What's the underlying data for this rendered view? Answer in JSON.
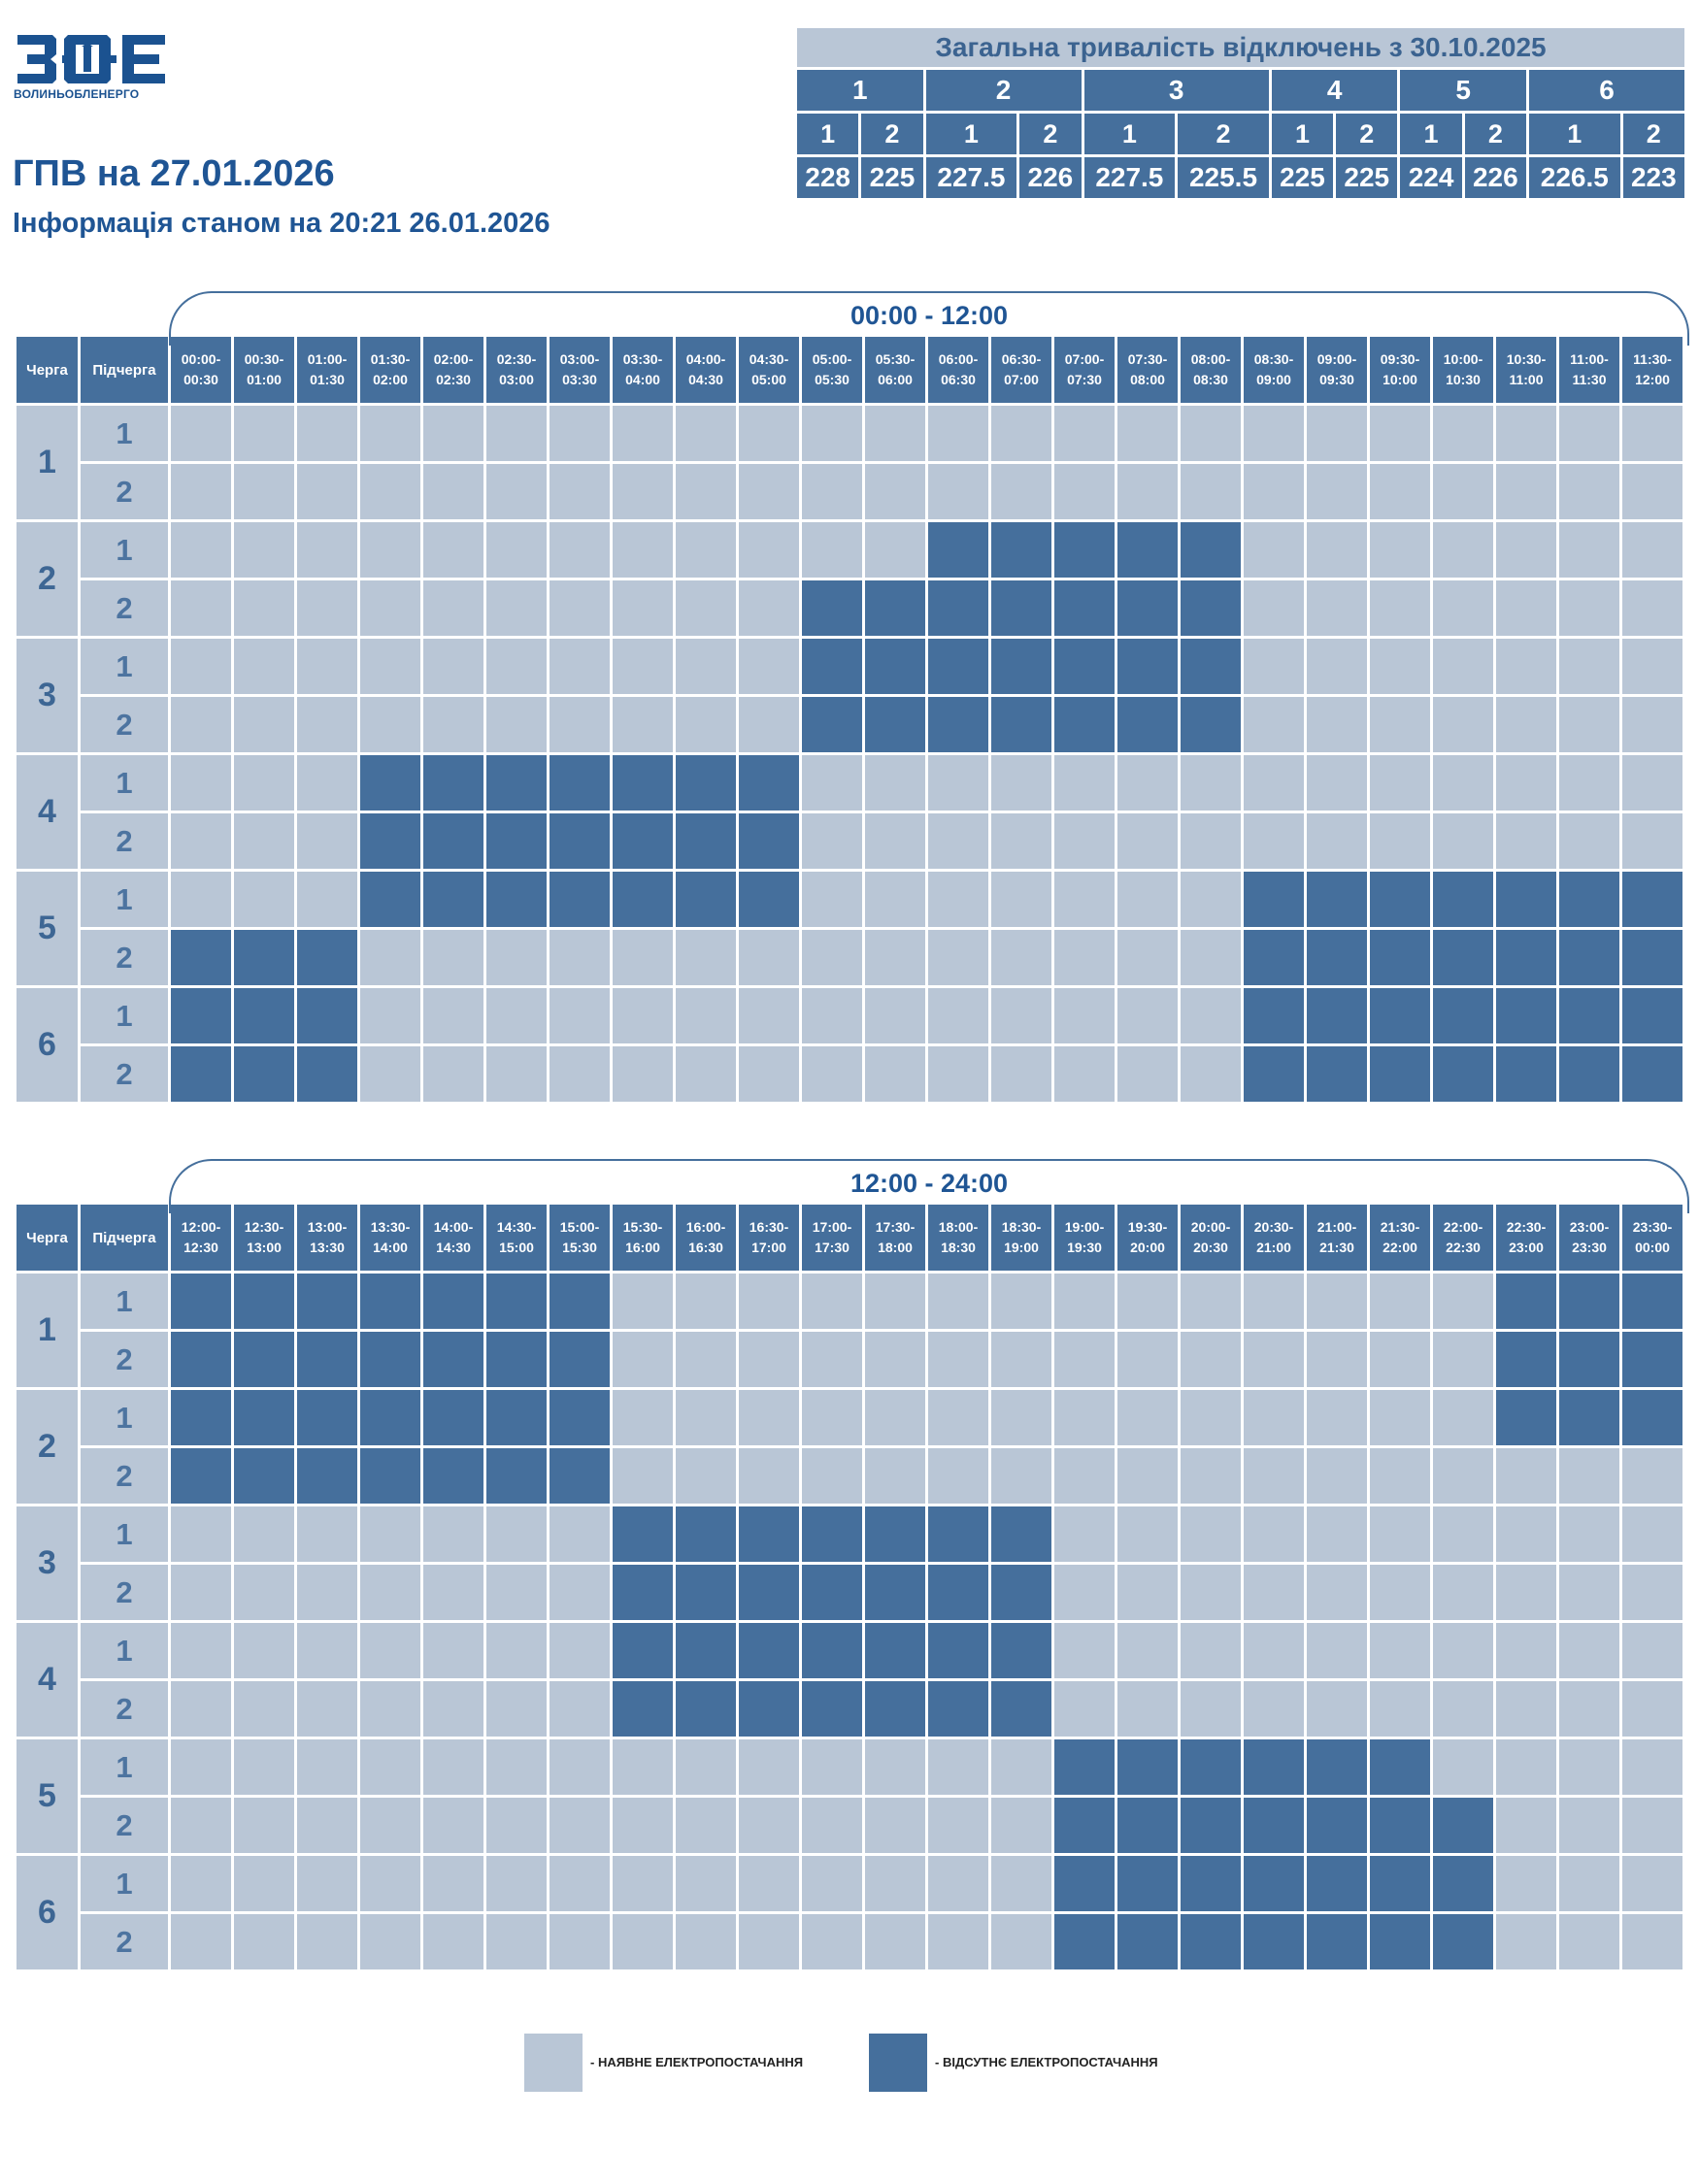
{
  "logo": {
    "text": "ВОЛИНЬОБЛЕНЕРГО"
  },
  "header": {
    "title": "ГПВ на 27.01.2026",
    "subtitle": "Інформація станом на 20:21 26.01.2026"
  },
  "summary": {
    "title": "Загальна тривалість відключень з 30.10.2025",
    "groups": [
      "1",
      "2",
      "3",
      "4",
      "5",
      "6"
    ],
    "subgroups": [
      "1",
      "2",
      "1",
      "2",
      "1",
      "2",
      "1",
      "2",
      "1",
      "2",
      "1",
      "2"
    ],
    "values": [
      "228",
      "225",
      "227.5",
      "226",
      "227.5",
      "225.5",
      "225",
      "225",
      "224",
      "226",
      "226.5",
      "223"
    ]
  },
  "colors": {
    "power_on": "#b9c6d6",
    "power_off": "#456f9c",
    "accent": "#1f5594"
  },
  "grid_headers": {
    "queue": "Черга",
    "subqueue": "Підчерга"
  },
  "halves": [
    {
      "range": "00:00 - 12:00",
      "slots": [
        "00:00-00:30",
        "00:30-01:00",
        "01:00-01:30",
        "01:30-02:00",
        "02:00-02:30",
        "02:30-03:00",
        "03:00-03:30",
        "03:30-04:00",
        "04:00-04:30",
        "04:30-05:00",
        "05:00-05:30",
        "05:30-06:00",
        "06:00-06:30",
        "06:30-07:00",
        "07:00-07:30",
        "07:30-08:00",
        "08:00-08:30",
        "08:30-09:00",
        "09:00-09:30",
        "09:30-10:00",
        "10:00-10:30",
        "10:30-11:00",
        "11:00-11:30",
        "11:30-12:00"
      ],
      "rows": [
        {
          "queue": "1",
          "sub": "1",
          "cells": "000000000000000000000000"
        },
        {
          "queue": "1",
          "sub": "2",
          "cells": "000000000000000000000000"
        },
        {
          "queue": "2",
          "sub": "1",
          "cells": "000000000000111110000000"
        },
        {
          "queue": "2",
          "sub": "2",
          "cells": "000000000011111110000000"
        },
        {
          "queue": "3",
          "sub": "1",
          "cells": "000000000011111110000000"
        },
        {
          "queue": "3",
          "sub": "2",
          "cells": "000000000011111110000000"
        },
        {
          "queue": "4",
          "sub": "1",
          "cells": "000111111100000000000000"
        },
        {
          "queue": "4",
          "sub": "2",
          "cells": "000111111100000000000000"
        },
        {
          "queue": "5",
          "sub": "1",
          "cells": "000111111100000001111111"
        },
        {
          "queue": "5",
          "sub": "2",
          "cells": "111000000000000001111111"
        },
        {
          "queue": "6",
          "sub": "1",
          "cells": "111000000000000001111111"
        },
        {
          "queue": "6",
          "sub": "2",
          "cells": "111000000000000001111111"
        }
      ]
    },
    {
      "range": "12:00 - 24:00",
      "slots": [
        "12:00-12:30",
        "12:30-13:00",
        "13:00-13:30",
        "13:30-14:00",
        "14:00-14:30",
        "14:30-15:00",
        "15:00-15:30",
        "15:30-16:00",
        "16:00-16:30",
        "16:30-17:00",
        "17:00-17:30",
        "17:30-18:00",
        "18:00-18:30",
        "18:30-19:00",
        "19:00-19:30",
        "19:30-20:00",
        "20:00-20:30",
        "20:30-21:00",
        "21:00-21:30",
        "21:30-22:00",
        "22:00-22:30",
        "22:30-23:00",
        "23:00-23:30",
        "23:30-00:00"
      ],
      "rows": [
        {
          "queue": "1",
          "sub": "1",
          "cells": "111111100000000000000111"
        },
        {
          "queue": "1",
          "sub": "2",
          "cells": "111111100000000000000111"
        },
        {
          "queue": "2",
          "sub": "1",
          "cells": "111111100000000000000111"
        },
        {
          "queue": "2",
          "sub": "2",
          "cells": "111111100000000000000000"
        },
        {
          "queue": "3",
          "sub": "1",
          "cells": "000000011111110000000000"
        },
        {
          "queue": "3",
          "sub": "2",
          "cells": "000000011111110000000000"
        },
        {
          "queue": "4",
          "sub": "1",
          "cells": "000000011111110000000000"
        },
        {
          "queue": "4",
          "sub": "2",
          "cells": "000000011111110000000000"
        },
        {
          "queue": "5",
          "sub": "1",
          "cells": "000000000000001111110000"
        },
        {
          "queue": "5",
          "sub": "2",
          "cells": "000000000000001111111000"
        },
        {
          "queue": "6",
          "sub": "1",
          "cells": "000000000000001111111000"
        },
        {
          "queue": "6",
          "sub": "2",
          "cells": "000000000000001111111000"
        }
      ]
    }
  ],
  "legend": {
    "on_label": "- НАЯВНЕ ЕЛЕКТРОПОСТАЧАННЯ",
    "off_label": "- ВІДСУТНЄ ЕЛЕКТРОПОСТАЧАННЯ"
  }
}
